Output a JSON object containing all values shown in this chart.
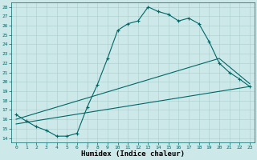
{
  "xlabel": "Humidex (Indice chaleur)",
  "background_color": "#cce8e8",
  "line_color": "#006666",
  "xlim": [
    -0.5,
    23.5
  ],
  "ylim": [
    13.5,
    28.5
  ],
  "xticks": [
    0,
    1,
    2,
    3,
    4,
    5,
    6,
    7,
    8,
    9,
    10,
    11,
    12,
    13,
    14,
    15,
    16,
    17,
    18,
    19,
    20,
    21,
    22,
    23
  ],
  "yticks": [
    14,
    15,
    16,
    17,
    18,
    19,
    20,
    21,
    22,
    23,
    24,
    25,
    26,
    27,
    28
  ],
  "curve1_x": [
    0,
    1,
    2,
    3,
    4,
    5,
    6,
    7,
    8,
    9,
    10,
    11,
    12,
    13,
    14,
    15,
    16,
    17,
    18,
    19,
    20,
    21,
    22,
    23
  ],
  "curve1_y": [
    16.5,
    15.8,
    15.2,
    14.8,
    14.2,
    14.2,
    14.5,
    17.3,
    19.7,
    22.5,
    25.5,
    26.2,
    26.5,
    28.0,
    27.5,
    27.2,
    26.5,
    26.8,
    26.2,
    24.3,
    22.0,
    21.0,
    20.3,
    19.5
  ],
  "line2_x": [
    0,
    23
  ],
  "line2_y": [
    15.5,
    19.5
  ],
  "line3_x": [
    0,
    20,
    23
  ],
  "line3_y": [
    16.0,
    22.5,
    19.8
  ],
  "marker": "+"
}
